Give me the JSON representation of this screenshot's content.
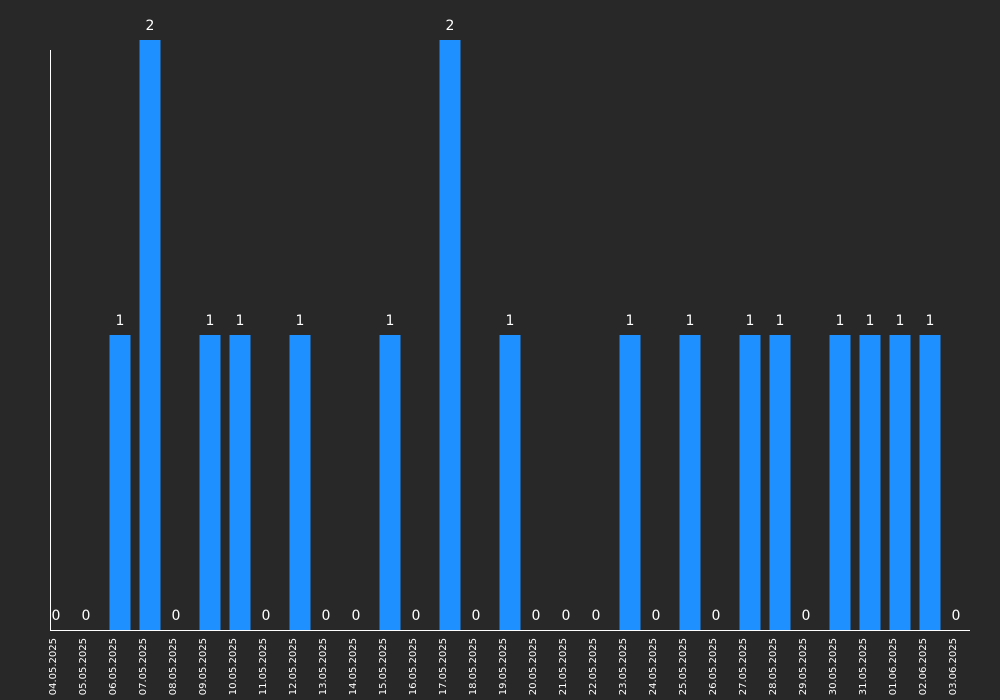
{
  "chart_data": {
    "type": "bar",
    "categories": [
      "04.05.2025",
      "05.05.2025",
      "06.05.2025",
      "07.05.2025",
      "08.05.2025",
      "09.05.2025",
      "10.05.2025",
      "11.05.2025",
      "12.05.2025",
      "13.05.2025",
      "14.05.2025",
      "15.05.2025",
      "16.05.2025",
      "17.05.2025",
      "18.05.2025",
      "19.05.2025",
      "20.05.2025",
      "21.05.2025",
      "22.05.2025",
      "23.05.2025",
      "24.05.2025",
      "25.05.2025",
      "26.05.2025",
      "27.05.2025",
      "28.05.2025",
      "29.05.2025",
      "30.05.2025",
      "31.05.2025",
      "01.06.2025",
      "02.06.2025",
      "03.06.2025"
    ],
    "values": [
      0,
      0,
      1,
      2,
      0,
      1,
      1,
      0,
      1,
      0,
      0,
      1,
      0,
      2,
      0,
      1,
      0,
      0,
      0,
      1,
      0,
      1,
      0,
      1,
      1,
      0,
      1,
      1,
      1,
      1,
      0
    ],
    "title": "",
    "xlabel": "",
    "ylabel": "",
    "ylim": [
      0,
      2
    ],
    "grid": false,
    "data_labels": true,
    "bar_color": "#1e90ff",
    "label_color": "#ffffff",
    "axis_color": "#ffffff",
    "background": "#282828"
  }
}
